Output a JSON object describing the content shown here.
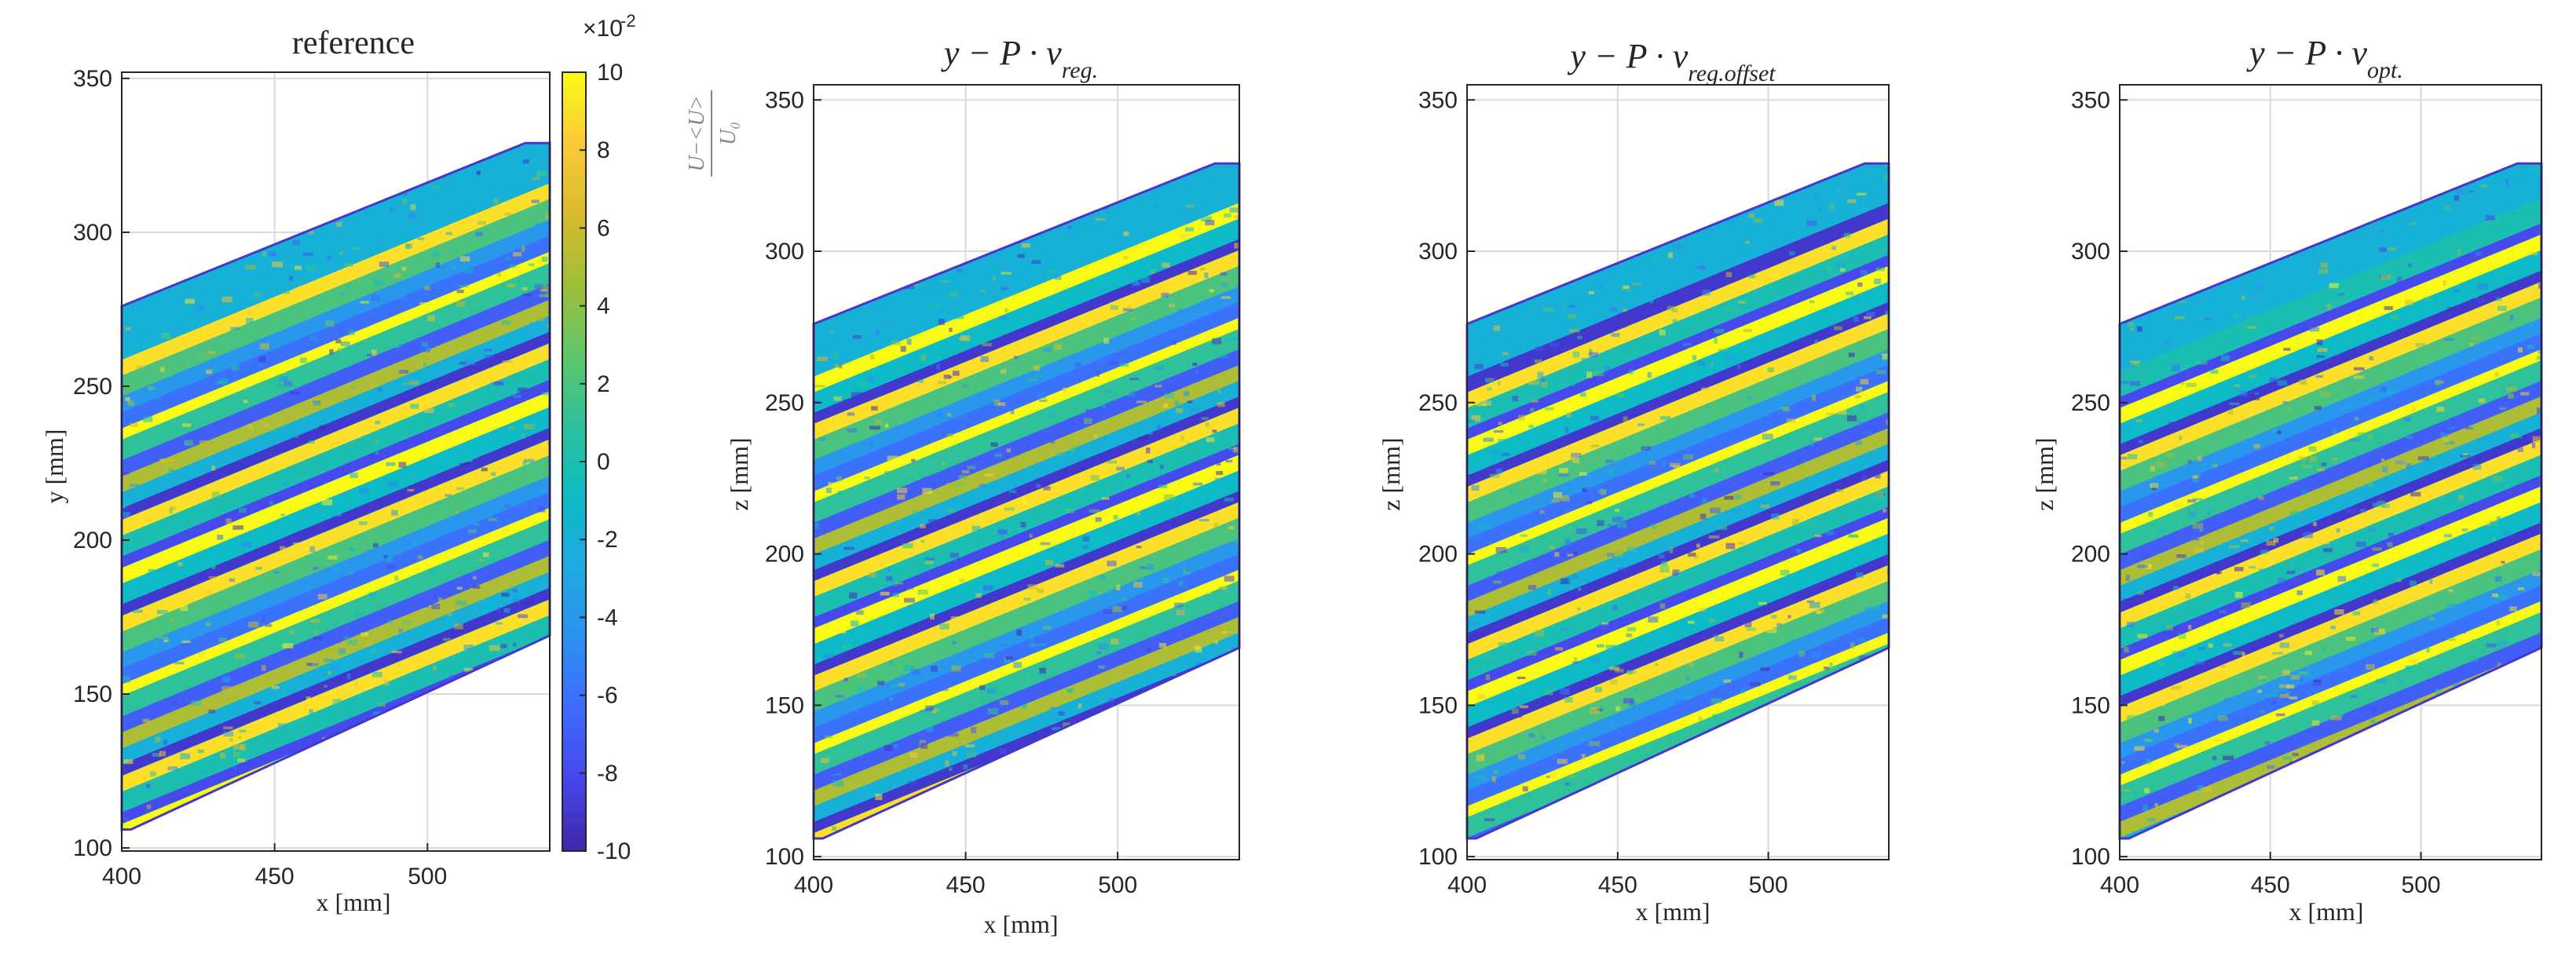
{
  "colors": {
    "axis": "#262626",
    "grid": "#d9d9d9",
    "background": "#ffffff",
    "colormap": [
      "#3e26a8",
      "#4746eb",
      "#3e6bfd",
      "#2d90f1",
      "#1fa9e1",
      "#0cbbc5",
      "#2cc19c",
      "#60c56b",
      "#9fbe39",
      "#d8ba2c",
      "#fcc938",
      "#f9fb15"
    ]
  },
  "chart_data": [
    {
      "type": "heatmap",
      "panel": "reference",
      "title": "reference",
      "xlabel": "x [mm]",
      "ylabel": "y [mm]",
      "xlim": [
        400,
        540
      ],
      "ylim": [
        99,
        352
      ],
      "xticks": [
        "400",
        "450",
        "500"
      ],
      "yticks": [
        "100",
        "150",
        "200",
        "250",
        "300",
        "350"
      ],
      "grid": true,
      "region": {
        "x": [
          400,
          403,
          532,
          540,
          540,
          400
        ],
        "y": [
          106,
          106,
          329,
          329,
          169,
          276
        ]
      },
      "band_slope": 0.41,
      "description_values": "normalized velocity deviation (U-<U>)/U0, stripe pattern"
    },
    {
      "type": "heatmap",
      "panel": "regular",
      "title": "y − P · v",
      "title_subscript": "reg.",
      "xlabel": "x [mm]",
      "ylabel": "z [mm]",
      "xlim": [
        400,
        540
      ],
      "ylim": [
        99,
        355
      ],
      "xticks": [
        "400",
        "450",
        "500"
      ],
      "yticks": [
        "100",
        "150",
        "200",
        "250",
        "300",
        "350"
      ],
      "grid": true,
      "band_slope": 0.41
    },
    {
      "type": "heatmap",
      "panel": "regular-offset",
      "title": "y − P · v",
      "title_subscript": "reg.offset",
      "xlabel": "x [mm]",
      "ylabel": "z [mm]",
      "xlim": [
        400,
        540
      ],
      "ylim": [
        99,
        355
      ],
      "xticks": [
        "400",
        "450",
        "500"
      ],
      "yticks": [
        "100",
        "150",
        "200",
        "250",
        "300",
        "350"
      ],
      "grid": true,
      "band_slope": 0.41
    },
    {
      "type": "heatmap",
      "panel": "optimal",
      "title": "y − P · v",
      "title_subscript": "opt.",
      "xlabel": "x [mm]",
      "ylabel": "z [mm]",
      "xlim": [
        400,
        540
      ],
      "ylim": [
        99,
        355
      ],
      "xticks": [
        "400",
        "450",
        "500"
      ],
      "yticks": [
        "100",
        "150",
        "200",
        "250",
        "300",
        "350"
      ],
      "grid": true,
      "band_slope": 0.41
    }
  ],
  "colorbar": {
    "label": "(U−<U>)/U₀",
    "label_numerator": "U−<U>",
    "label_denominator": "U₀",
    "exponent": "×10",
    "exponent_power": "-2",
    "range": [
      -10,
      10
    ],
    "ticks": [
      "10",
      "8",
      "6",
      "4",
      "2",
      "0",
      "-2",
      "-4",
      "-6",
      "-8",
      "-10"
    ]
  }
}
